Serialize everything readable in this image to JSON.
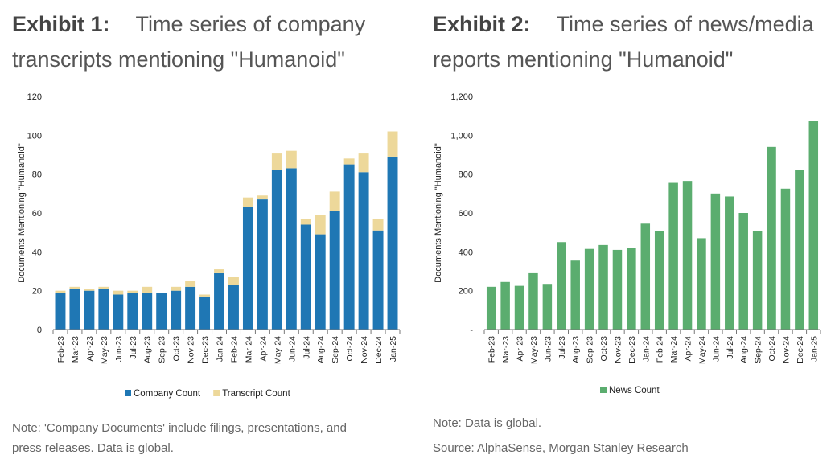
{
  "exhibit1": {
    "label": "Exhibit 1:",
    "title_line1": "Time series of company",
    "title_line2": "transcripts mentioning \"Humanoid\"",
    "note_line1": "Note: 'Company Documents' include filings, presentations, and",
    "note_line2": "press releases. Data is global.",
    "colors": {
      "company": "#1F77B4",
      "transcript": "#EDD89A"
    },
    "chart_data": {
      "type": "bar",
      "stacked": true,
      "categories": [
        "Feb-23",
        "Mar-23",
        "Apr-23",
        "May-23",
        "Jun-23",
        "Jul-23",
        "Aug-23",
        "Sep-23",
        "Oct-23",
        "Nov-23",
        "Dec-23",
        "Jan-24",
        "Feb-24",
        "Mar-24",
        "Apr-24",
        "May-24",
        "Jun-24",
        "Jul-24",
        "Aug-24",
        "Sep-24",
        "Oct-24",
        "Nov-24",
        "Dec-24",
        "Jan-25"
      ],
      "series": [
        {
          "name": "Company Count",
          "values": [
            19,
            21,
            20,
            21,
            18,
            19,
            19,
            19,
            20,
            22,
            17,
            29,
            23,
            63,
            67,
            82,
            83,
            54,
            49,
            61,
            85,
            81,
            51,
            89
          ]
        },
        {
          "name": "Transcript Count",
          "values": [
            1,
            1,
            1,
            1,
            2,
            1,
            3,
            0,
            2,
            3,
            1,
            2,
            4,
            5,
            2,
            9,
            9,
            3,
            10,
            10,
            3,
            10,
            6,
            13
          ]
        }
      ],
      "ylabel": "Documents Mentioning \"Humanoid\"",
      "ylim": [
        0,
        120
      ],
      "yticks": [
        "0",
        "20",
        "40",
        "60",
        "80",
        "100",
        "120"
      ],
      "grid": false,
      "legend": "bottom"
    }
  },
  "exhibit2": {
    "label": "Exhibit 2:",
    "title_line1": "Time series of news/media",
    "title_line2": "reports mentioning \"Humanoid\"",
    "note_line1": "Note: Data is global.",
    "source": "Source: AlphaSense, Morgan Stanley Research",
    "colors": {
      "news": "#5BAD6F"
    },
    "chart_data": {
      "type": "bar",
      "categories": [
        "Feb-23",
        "Mar-23",
        "Apr-23",
        "May-23",
        "Jun-23",
        "Jul-23",
        "Aug-23",
        "Sep-23",
        "Oct-23",
        "Nov-23",
        "Dec-23",
        "Jan-24",
        "Feb-24",
        "Mar-24",
        "Apr-24",
        "May-24",
        "Jun-24",
        "Jul-24",
        "Aug-24",
        "Sep-24",
        "Oct-24",
        "Nov-24",
        "Dec-24",
        "Jan-25"
      ],
      "series": [
        {
          "name": "News Count",
          "values": [
            220,
            245,
            225,
            290,
            235,
            450,
            355,
            415,
            435,
            410,
            420,
            545,
            505,
            755,
            765,
            470,
            700,
            685,
            600,
            505,
            940,
            725,
            820,
            1075
          ]
        }
      ],
      "ylabel": "Documents Mentioning \"Humanoid\"",
      "ylim": [
        0,
        1200
      ],
      "yticks": [
        "-",
        "200",
        "400",
        "600",
        "800",
        "1,000",
        "1,200"
      ],
      "grid": false,
      "legend": "bottom"
    }
  }
}
